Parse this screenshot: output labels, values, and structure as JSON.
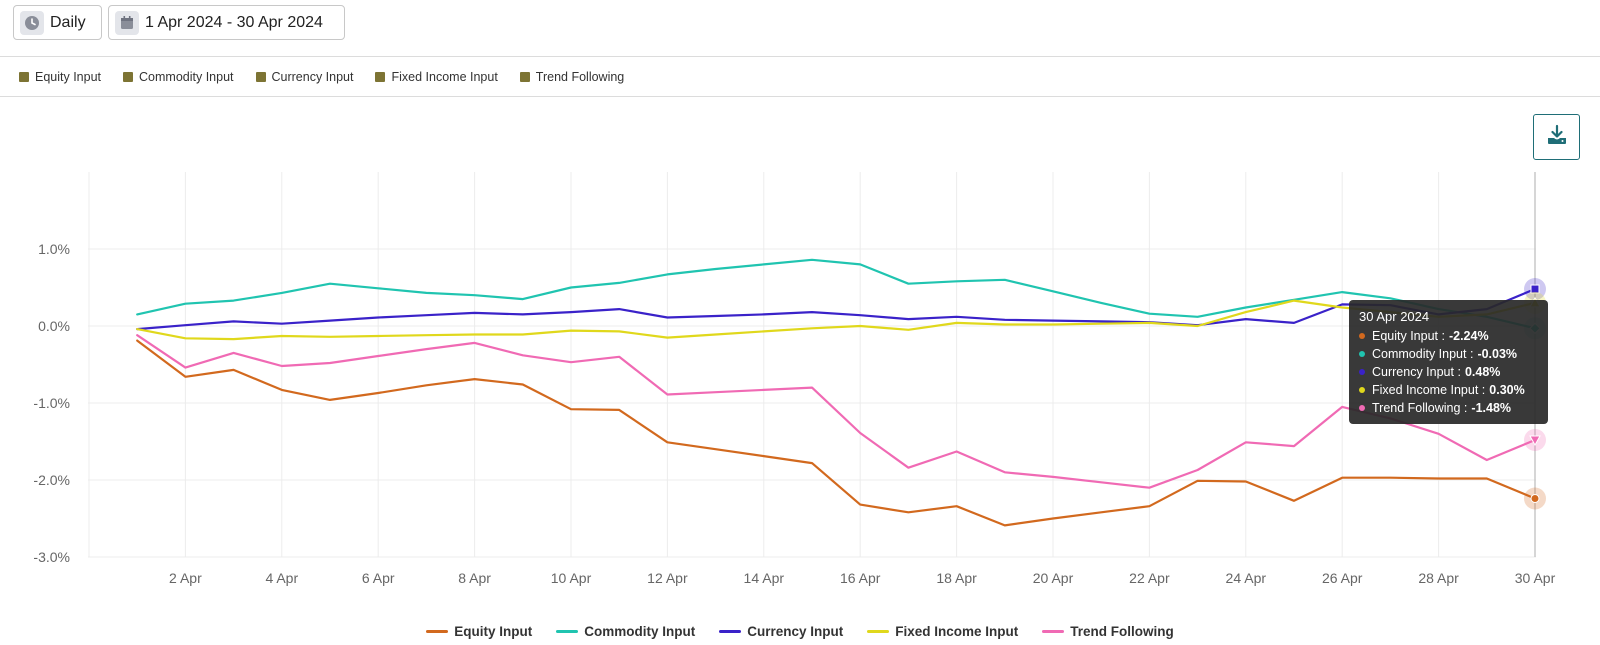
{
  "toolbar": {
    "period_label": "Daily",
    "date_range": "1 Apr 2024 - 30 Apr 2024"
  },
  "filters": [
    {
      "label": "Equity Input",
      "color": "#7d7434"
    },
    {
      "label": "Commodity Input",
      "color": "#7d7434"
    },
    {
      "label": "Currency Input",
      "color": "#7d7434"
    },
    {
      "label": "Fixed Income Input",
      "color": "#7d7434"
    },
    {
      "label": "Trend Following",
      "color": "#7d7434"
    }
  ],
  "download_icon": "download-icon",
  "tooltip": {
    "date": "30 Apr 2024",
    "rows": [
      {
        "label": "Equity Input :",
        "value": "-2.24%",
        "color": "#d2691e"
      },
      {
        "label": "Commodity Input :",
        "value": "-0.03%",
        "color": "#20c4b0"
      },
      {
        "label": "Currency Input :",
        "value": "0.48%",
        "color": "#3a22c9"
      },
      {
        "label": "Fixed Income Input :",
        "value": "0.30%",
        "color": "#e0d81c"
      },
      {
        "label": "Trend Following :",
        "value": "-1.48%",
        "color": "#f06ab4"
      }
    ]
  },
  "chart_data": {
    "type": "line",
    "x": [
      1,
      2,
      3,
      4,
      5,
      6,
      7,
      8,
      9,
      10,
      11,
      12,
      13,
      14,
      15,
      16,
      17,
      18,
      19,
      20,
      21,
      22,
      23,
      24,
      25,
      26,
      27,
      28,
      29,
      30
    ],
    "xticks": [
      2,
      4,
      6,
      8,
      10,
      12,
      14,
      16,
      18,
      20,
      22,
      24,
      26,
      28,
      30
    ],
    "xtick_labels": [
      "2 Apr",
      "4 Apr",
      "6 Apr",
      "8 Apr",
      "10 Apr",
      "12 Apr",
      "14 Apr",
      "16 Apr",
      "18 Apr",
      "20 Apr",
      "22 Apr",
      "24 Apr",
      "26 Apr",
      "28 Apr",
      "30 Apr"
    ],
    "yticks": [
      -3,
      -2,
      -1,
      0,
      1
    ],
    "ytick_labels": [
      "-3.0%",
      "-2.0%",
      "-1.0%",
      "0.0%",
      "1.0%"
    ],
    "ylim": [
      -3.0,
      2.0
    ],
    "xlim": [
      0,
      30.2
    ],
    "grid": true,
    "legend_position": "bottom",
    "series": [
      {
        "name": "Equity Input",
        "color": "#d2691e",
        "values": [
          -0.19,
          -0.66,
          -0.57,
          -0.83,
          -0.96,
          -0.87,
          -0.77,
          -0.69,
          -0.76,
          -1.08,
          -1.09,
          -1.51,
          -1.6,
          -1.69,
          -1.78,
          -2.32,
          -2.42,
          -2.34,
          -2.59,
          -2.5,
          -2.42,
          -2.34,
          -2.01,
          -2.02,
          -2.27,
          -1.97,
          -1.97,
          -1.98,
          -1.98,
          -2.24
        ],
        "marker": "circle"
      },
      {
        "name": "Commodity Input",
        "color": "#20c4b0",
        "values": [
          0.15,
          0.29,
          0.33,
          0.43,
          0.55,
          0.49,
          0.43,
          0.4,
          0.35,
          0.5,
          0.56,
          0.67,
          0.74,
          0.8,
          0.86,
          0.8,
          0.55,
          0.58,
          0.6,
          0.45,
          0.3,
          0.16,
          0.12,
          0.24,
          0.34,
          0.44,
          0.36,
          0.22,
          0.12,
          -0.03
        ],
        "marker": "diamond"
      },
      {
        "name": "Currency Input",
        "color": "#3a22c9",
        "values": [
          -0.04,
          0.01,
          0.06,
          0.03,
          0.07,
          0.11,
          0.14,
          0.17,
          0.15,
          0.18,
          0.22,
          0.11,
          0.13,
          0.15,
          0.18,
          0.14,
          0.09,
          0.12,
          0.08,
          0.07,
          0.06,
          0.05,
          0.01,
          0.09,
          0.04,
          0.28,
          0.27,
          0.15,
          0.22,
          0.48
        ],
        "marker": "square"
      },
      {
        "name": "Fixed Income Input",
        "color": "#e0d81c",
        "values": [
          -0.04,
          -0.16,
          -0.17,
          -0.13,
          -0.14,
          -0.13,
          -0.12,
          -0.11,
          -0.11,
          -0.06,
          -0.07,
          -0.15,
          -0.11,
          -0.07,
          -0.03,
          0.0,
          -0.05,
          0.04,
          0.02,
          0.02,
          0.03,
          0.04,
          0.0,
          0.18,
          0.33,
          0.24,
          0.18,
          0.12,
          0.15,
          0.3
        ],
        "marker": "triangle"
      },
      {
        "name": "Trend Following",
        "color": "#f06ab4",
        "values": [
          -0.12,
          -0.54,
          -0.35,
          -0.52,
          -0.48,
          -0.39,
          -0.3,
          -0.22,
          -0.38,
          -0.47,
          -0.4,
          -0.89,
          -0.86,
          -0.83,
          -0.8,
          -1.39,
          -1.84,
          -1.63,
          -1.9,
          -1.96,
          -2.03,
          -2.1,
          -1.87,
          -1.51,
          -1.56,
          -1.05,
          -1.2,
          -1.4,
          -1.74,
          -1.48
        ],
        "marker": "triangle-down"
      }
    ]
  }
}
